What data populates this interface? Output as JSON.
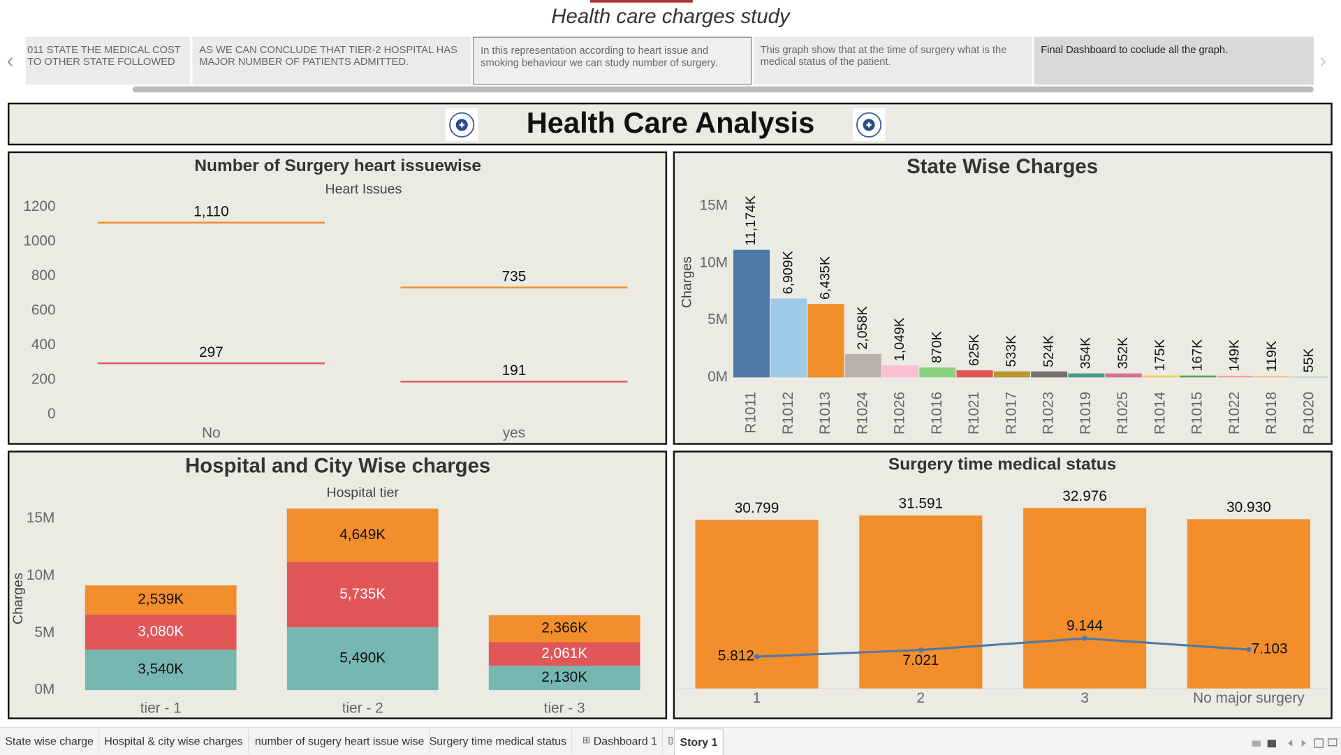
{
  "story": {
    "title": "Health care charges study",
    "captions": [
      "011 STATE THE MEDICAL COST TO OTHER STATE FOLLOWED",
      "AS WE CAN CONCLUDE THAT TIER-2 HOSPITAL HAS MAJOR NUMBER OF PATIENTS ADMITTED.",
      "In this representation according to heart issue and smoking behaviour we can study number of surgery.",
      "This graph show that  at the time of surgery what is the medical status of the patient.",
      "Final Dashboard to coclude all the graph."
    ]
  },
  "dashboard": {
    "title": "Health Care Analysis"
  },
  "tabs": [
    "State wise charge",
    "Hospital & city wise charges",
    "number of sugery heart issue wise",
    "Surgery time medical status",
    "Dashboard 1",
    "Story 1"
  ],
  "chart_data": [
    {
      "type": "gantt",
      "title": "Number of Surgery heart issuewise",
      "subtitle": "Heart Issues",
      "categories": [
        "No",
        "yes"
      ],
      "series": [
        {
          "color": "#f28e2b",
          "values": [
            1110,
            735
          ],
          "value_labels": [
            "1,110",
            "735"
          ]
        },
        {
          "color": "#e15759",
          "values": [
            297,
            191
          ],
          "value_labels": [
            "297",
            "191"
          ]
        }
      ],
      "ylim": [
        -50,
        1250
      ],
      "yticks": [
        0,
        200,
        400,
        600,
        800,
        1000,
        1200
      ],
      "grid": false
    },
    {
      "type": "bar",
      "title": "State Wise Charges",
      "y_label": "Charges",
      "categories": [
        "R1011",
        "R1012",
        "R1013",
        "R1024",
        "R1026",
        "R1016",
        "R1021",
        "R1017",
        "R1023",
        "R1019",
        "R1025",
        "R1014",
        "R1015",
        "R1022",
        "R1018",
        "R1020"
      ],
      "values": [
        11174000,
        6909000,
        6435000,
        2058000,
        1049000,
        870000,
        625000,
        533000,
        524000,
        354000,
        352000,
        175000,
        167000,
        149000,
        119000,
        55000
      ],
      "value_labels": [
        "11,174K",
        "6,909K",
        "6,435K",
        "2,058K",
        "1,049K",
        "870K",
        "625K",
        "533K",
        "524K",
        "354K",
        "352K",
        "175K",
        "167K",
        "149K",
        "119K",
        "55K"
      ],
      "colors": [
        "#4e79a7",
        "#a0cbe8",
        "#f28e2b",
        "#bab0ac",
        "#fabfd2",
        "#8cd17d",
        "#e15759",
        "#b6992d",
        "#79706e",
        "#499894",
        "#d37295",
        "#f1ce63",
        "#59a14f",
        "#ff9d9a",
        "#ffbe7d",
        "#86bcb6"
      ],
      "ylim": [
        -800000,
        16200000
      ],
      "yticks": [
        {
          "value": 0,
          "label": "0M"
        },
        {
          "value": 5000000,
          "label": "5M"
        },
        {
          "value": 10000000,
          "label": "10M"
        },
        {
          "value": 15000000,
          "label": "15M"
        }
      ],
      "grid": false
    },
    {
      "type": "stacked_bar",
      "title": "Hospital and City Wise charges",
      "subtitle": "Hospital tier",
      "y_label": "Charges",
      "categories": [
        "tier - 1",
        "tier - 2",
        "tier - 3"
      ],
      "series": [
        {
          "color": "#76b7b2",
          "values": [
            3540000,
            5490000,
            2130000
          ],
          "value_labels": [
            "3,540K",
            "5,490K",
            "2,130K"
          ]
        },
        {
          "color": "#e15759",
          "values": [
            3080000,
            5735000,
            2061000
          ],
          "value_labels": [
            "3,080K",
            "5,735K",
            "2,061K"
          ]
        },
        {
          "color": "#f28e2b",
          "values": [
            2539000,
            4649000,
            2366000
          ],
          "value_labels": [
            "2,539K",
            "4,649K",
            "2,366K"
          ]
        }
      ],
      "ylim": [
        -750000,
        16600000
      ],
      "yticks": [
        {
          "value": 0,
          "label": "0M"
        },
        {
          "value": 5000000,
          "label": "5M"
        },
        {
          "value": 10000000,
          "label": "10M"
        },
        {
          "value": 15000000,
          "label": "15M"
        }
      ],
      "grid": false
    },
    {
      "type": "bar_line",
      "title": "Surgery time medical status",
      "categories": [
        "1",
        "2",
        "3",
        "No major surgery"
      ],
      "series": [
        {
          "type": "bar",
          "color": "#f28e2b",
          "values": [
            30.799,
            31.591,
            32.976,
            30.93
          ],
          "value_labels": [
            "30.799",
            "31.591",
            "32.976",
            "30.930"
          ]
        },
        {
          "type": "line",
          "color": "#4e79a7",
          "values": [
            5.812,
            7.021,
            9.144,
            7.103
          ]
        }
      ],
      "ylim": [
        0,
        36
      ],
      "grid": false
    }
  ]
}
